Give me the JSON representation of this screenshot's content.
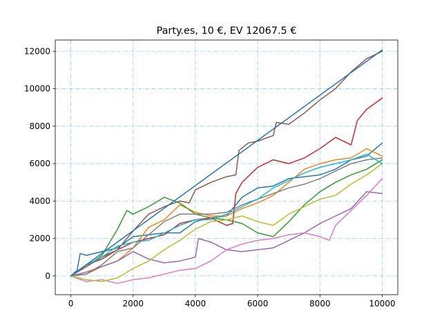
{
  "chart_data": {
    "type": "line",
    "title": "Party.es, 10 €, EV 12067.5 €",
    "xlabel": "",
    "ylabel": "",
    "xlim": [
      -500,
      10500
    ],
    "ylim": [
      -1000,
      12600
    ],
    "xticks": [
      0,
      2000,
      4000,
      6000,
      8000,
      10000
    ],
    "yticks": [
      0,
      2000,
      4000,
      6000,
      8000,
      10000,
      12000
    ],
    "xtick_labels": [
      "0",
      "2000",
      "4000",
      "6000",
      "8000",
      "10000"
    ],
    "ytick_labels": [
      "0",
      "2000",
      "4000",
      "6000",
      "8000",
      "10000",
      "12000"
    ],
    "grid": true,
    "grid_color": "#87ceeb",
    "legend": "none",
    "series": [
      {
        "color": "#1f77b4",
        "x": [
          0,
          200,
          300,
          500,
          1000,
          1500,
          2000,
          2500,
          3000,
          3500,
          4000,
          4500,
          5000,
          5500,
          6000,
          6500,
          7000,
          7500,
          8000,
          8500,
          9000,
          9500,
          10000
        ],
        "y": [
          0,
          300,
          1200,
          1100,
          1300,
          1500,
          2100,
          2200,
          2300,
          2300,
          2900,
          3100,
          3200,
          4200,
          4700,
          4800,
          5200,
          5300,
          5400,
          5700,
          6200,
          6400,
          7100
        ]
      },
      {
        "color": "#ff7f0e",
        "x": [
          0,
          500,
          1000,
          1500,
          2000,
          2500,
          3000,
          3500,
          4000,
          4500,
          5000,
          5500,
          6000,
          6500,
          7000,
          7500,
          8000,
          8500,
          9000,
          9500,
          10000
        ],
        "y": [
          0,
          100,
          500,
          800,
          1500,
          2600,
          3000,
          3800,
          3400,
          3200,
          3200,
          3600,
          3900,
          4300,
          5000,
          5700,
          6000,
          6200,
          6300,
          6800,
          6400
        ]
      },
      {
        "color": "#2ca02c",
        "x": [
          0,
          500,
          1000,
          1500,
          1800,
          2000,
          2500,
          3000,
          3500,
          4000,
          4500,
          5000,
          5500,
          6000,
          6500,
          7000,
          7500,
          8000,
          8500,
          9000,
          9500,
          10000
        ],
        "y": [
          0,
          500,
          1100,
          2500,
          3500,
          3300,
          3700,
          4200,
          3900,
          3300,
          3100,
          3000,
          2800,
          2300,
          2100,
          2900,
          3800,
          4500,
          5000,
          5400,
          5700,
          6200
        ]
      },
      {
        "color": "#d62728",
        "x": [
          0,
          500,
          1000,
          1500,
          2000,
          2500,
          3000,
          3500,
          4000,
          4500,
          5000,
          5200,
          5300,
          5500,
          6000,
          6500,
          7000,
          7500,
          8000,
          8500,
          9000,
          9200,
          9500,
          10000
        ],
        "y": [
          0,
          600,
          900,
          1400,
          1800,
          2000,
          2200,
          2800,
          3000,
          3100,
          2700,
          2800,
          4400,
          5000,
          5800,
          6200,
          6000,
          6300,
          6800,
          7400,
          7000,
          8300,
          8900,
          9500
        ]
      },
      {
        "color": "#9467bd",
        "x": [
          0,
          500,
          1000,
          1500,
          2000,
          2500,
          3000,
          3500,
          4000,
          4100,
          4500,
          5000,
          5500,
          6000,
          6500,
          7000,
          7500,
          8000,
          8500,
          9000,
          9500,
          10000
        ],
        "y": [
          0,
          200,
          500,
          800,
          1300,
          900,
          700,
          800,
          1000,
          2000,
          1800,
          1400,
          1300,
          1400,
          1500,
          1900,
          2300,
          2800,
          3200,
          3600,
          4500,
          4400
        ]
      },
      {
        "color": "#8c564b",
        "x": [
          0,
          500,
          1000,
          1500,
          2000,
          2500,
          3000,
          3500,
          3800,
          4000,
          4500,
          5000,
          5300,
          5400,
          5700,
          6000,
          6500,
          6600,
          7000,
          7500,
          8000,
          8500,
          9000,
          9500,
          10000
        ],
        "y": [
          0,
          500,
          1000,
          1400,
          2400,
          3300,
          3700,
          4000,
          3900,
          4600,
          5000,
          5300,
          5400,
          6700,
          7100,
          7200,
          7500,
          8200,
          8100,
          8700,
          9400,
          10000,
          10900,
          11600,
          12000
        ]
      },
      {
        "color": "#e377c2",
        "x": [
          0,
          500,
          1000,
          1500,
          2000,
          2500,
          3000,
          3500,
          4000,
          4500,
          5000,
          5500,
          6000,
          6500,
          7000,
          7500,
          8000,
          8300,
          8500,
          9000,
          9500,
          10000
        ],
        "y": [
          0,
          -300,
          -200,
          -400,
          -200,
          -100,
          100,
          300,
          400,
          800,
          1400,
          1700,
          1900,
          2000,
          2200,
          2300,
          2100,
          1900,
          2700,
          3500,
          4300,
          5200
        ]
      },
      {
        "color": "#7f7f7f",
        "x": [
          0,
          500,
          1000,
          1500,
          2000,
          2500,
          3000,
          3500,
          4000,
          4500,
          5000,
          5500,
          6000,
          6500,
          7000,
          7500,
          8000,
          8500,
          9000,
          9500,
          10000
        ],
        "y": [
          0,
          100,
          600,
          1300,
          1500,
          2200,
          2900,
          3300,
          3300,
          3300,
          3400,
          3800,
          4100,
          4400,
          4700,
          4900,
          5200,
          5600,
          6000,
          6200,
          6300
        ]
      },
      {
        "color": "#bcbd22",
        "x": [
          0,
          500,
          1000,
          1500,
          2000,
          2500,
          3000,
          3500,
          4000,
          4500,
          5000,
          5500,
          6000,
          6500,
          7000,
          7500,
          8000,
          8500,
          9000,
          9500,
          10000
        ],
        "y": [
          0,
          -200,
          -300,
          -100,
          400,
          800,
          1400,
          1900,
          2500,
          2900,
          3000,
          3200,
          2900,
          2700,
          3300,
          3700,
          4100,
          4300,
          4900,
          5400,
          6000
        ]
      },
      {
        "color": "#17becf",
        "x": [
          0,
          500,
          1000,
          1500,
          2000,
          2500,
          3000,
          3500,
          4000,
          4500,
          5000,
          5500,
          6000,
          6500,
          7000,
          7500,
          8000,
          8500,
          9000,
          9500,
          10000
        ],
        "y": [
          0,
          600,
          1000,
          1600,
          1800,
          1900,
          2300,
          2700,
          3000,
          3000,
          3300,
          3700,
          4100,
          4700,
          5100,
          5500,
          5800,
          6000,
          6200,
          6500,
          6000
        ]
      },
      {
        "color": "#1f77b4",
        "x": [
          0,
          10000
        ],
        "y": [
          0,
          12067.5
        ]
      }
    ]
  }
}
